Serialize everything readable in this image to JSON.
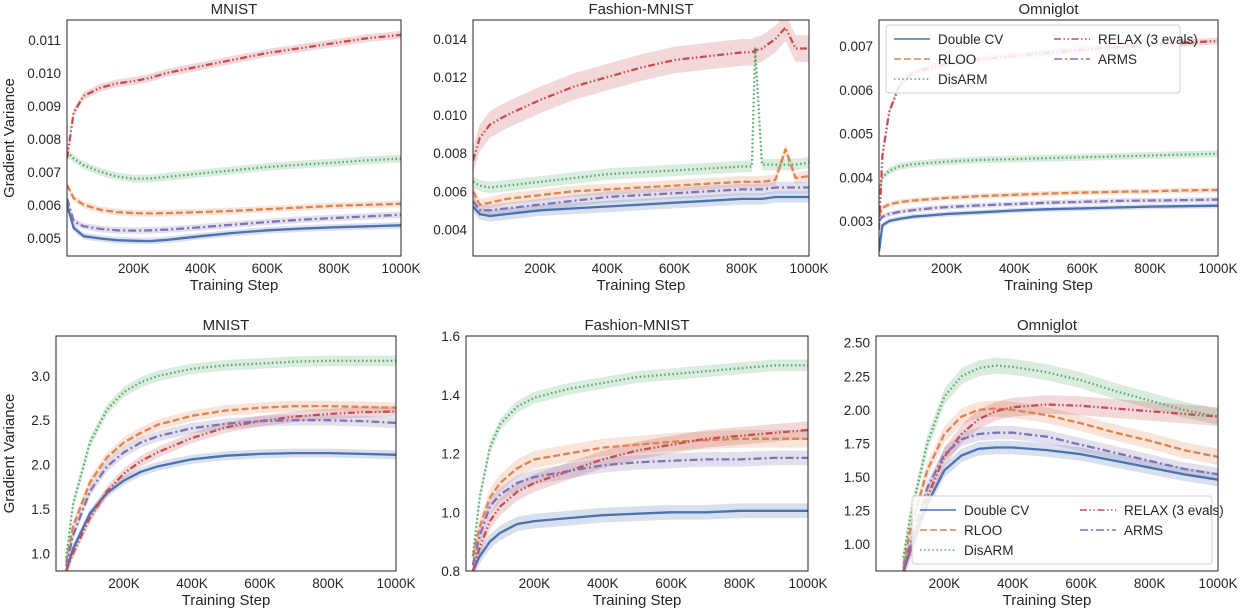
{
  "figure": {
    "xlabel": "Training Step",
    "ylabel": "Gradient Variance"
  },
  "legend_entries": [
    {
      "name": "Double CV",
      "color": "#4c72b0",
      "dash": "solid"
    },
    {
      "name": "RLOO",
      "color": "#dd8452",
      "dash": "dashed"
    },
    {
      "name": "DisARM",
      "color": "#55a868",
      "dash": "dotted"
    },
    {
      "name": "RELAX (3 evals)",
      "color": "#c44e52",
      "dash": "dashdotdot"
    },
    {
      "name": "ARMS",
      "color": "#8172b3",
      "dash": "dashdot"
    }
  ],
  "chart_data": [
    {
      "type": "line",
      "title": "MNIST",
      "xlabel": "Training Step",
      "ylabel": "Gradient Variance",
      "xlim": [
        0,
        1000000
      ],
      "ylim": [
        0.00445,
        0.0116
      ],
      "grid": false,
      "legend": "none",
      "xticks": [
        200000,
        400000,
        600000,
        800000,
        1000000
      ],
      "xtick_labels": [
        "200K",
        "400K",
        "600K",
        "800K",
        "1000K"
      ],
      "yticks": [
        0.005,
        0.006,
        0.007,
        0.008,
        0.009,
        0.01,
        0.011
      ],
      "ytick_labels": [
        "0.005",
        "0.006",
        "0.007",
        "0.008",
        "0.009",
        "0.010",
        "0.011"
      ],
      "x": [
        0,
        20000,
        50000,
        100000,
        150000,
        200000,
        250000,
        300000,
        400000,
        500000,
        600000,
        700000,
        800000,
        900000,
        1000000
      ],
      "series": [
        {
          "name": "Double CV",
          "values": [
            0.006,
            0.0053,
            0.00505,
            0.00498,
            0.00493,
            0.00491,
            0.0049,
            0.00494,
            0.00505,
            0.00515,
            0.00523,
            0.00528,
            0.00532,
            0.00535,
            0.00538
          ],
          "band": 0.0001
        },
        {
          "name": "RLOO",
          "values": [
            0.0066,
            0.0062,
            0.006,
            0.00585,
            0.00578,
            0.00575,
            0.00574,
            0.00575,
            0.00578,
            0.00582,
            0.00587,
            0.00592,
            0.00597,
            0.006,
            0.00603
          ],
          "band": 0.0001
        },
        {
          "name": "DisARM",
          "values": [
            0.0076,
            0.0074,
            0.0072,
            0.007,
            0.00686,
            0.00679,
            0.0068,
            0.00685,
            0.00695,
            0.00705,
            0.00715,
            0.00722,
            0.00728,
            0.00735,
            0.0074
          ],
          "band": 0.00012
        },
        {
          "name": "RELAX (3 evals)",
          "values": [
            0.0074,
            0.0088,
            0.0093,
            0.00955,
            0.00968,
            0.00975,
            0.00985,
            0.01,
            0.0102,
            0.0104,
            0.0106,
            0.01075,
            0.0109,
            0.01105,
            0.01115
          ],
          "band": 0.00012
        },
        {
          "name": "ARMS",
          "values": [
            0.0062,
            0.0055,
            0.00535,
            0.00527,
            0.00523,
            0.00522,
            0.00523,
            0.00525,
            0.00532,
            0.0054,
            0.00548,
            0.00555,
            0.0056,
            0.00565,
            0.0057
          ],
          "band": 0.0001
        }
      ]
    },
    {
      "type": "line",
      "title": "Fashion-MNIST",
      "xlabel": "Training Step",
      "ylabel": "",
      "xlim": [
        0,
        1000000
      ],
      "ylim": [
        0.0026,
        0.015
      ],
      "grid": false,
      "legend": "none",
      "xticks": [
        200000,
        400000,
        600000,
        800000,
        1000000
      ],
      "xtick_labels": [
        "200K",
        "400K",
        "600K",
        "800K",
        "1000K"
      ],
      "yticks": [
        0.004,
        0.006,
        0.008,
        0.01,
        0.012,
        0.014
      ],
      "ytick_labels": [
        "0.004",
        "0.006",
        "0.008",
        "0.010",
        "0.012",
        "0.014"
      ],
      "x": [
        0,
        20000,
        50000,
        100000,
        150000,
        200000,
        300000,
        400000,
        500000,
        600000,
        700000,
        800000,
        830000,
        840000,
        860000,
        900000,
        930000,
        960000,
        1000000
      ],
      "series": [
        {
          "name": "Double CV",
          "values": [
            0.0052,
            0.0048,
            0.0047,
            0.0048,
            0.0049,
            0.005,
            0.0051,
            0.0052,
            0.0053,
            0.0054,
            0.0055,
            0.0056,
            0.0056,
            0.0056,
            0.0056,
            0.0057,
            0.0057,
            0.0057,
            0.0057
          ],
          "band": 0.0003
        },
        {
          "name": "RLOO",
          "values": [
            0.006,
            0.0053,
            0.0054,
            0.0056,
            0.0057,
            0.0058,
            0.006,
            0.0061,
            0.0062,
            0.0063,
            0.0064,
            0.0065,
            0.0065,
            0.0065,
            0.0065,
            0.0066,
            0.0082,
            0.0067,
            0.0068
          ],
          "band": 0.0003
        },
        {
          "name": "DisARM",
          "values": [
            0.0065,
            0.0063,
            0.0062,
            0.0063,
            0.0064,
            0.0065,
            0.0067,
            0.0069,
            0.007,
            0.0071,
            0.0072,
            0.0073,
            0.0073,
            0.0135,
            0.0074,
            0.0074,
            0.0074,
            0.0074,
            0.0075
          ],
          "band": 0.0003
        },
        {
          "name": "RELAX (3 evals)",
          "values": [
            0.0076,
            0.0088,
            0.0095,
            0.01,
            0.0104,
            0.0108,
            0.0115,
            0.012,
            0.0125,
            0.0129,
            0.0131,
            0.0133,
            0.0133,
            0.0134,
            0.0135,
            0.014,
            0.0146,
            0.0135,
            0.0135
          ],
          "band": 0.0007
        },
        {
          "name": "ARMS",
          "values": [
            0.0055,
            0.005,
            0.005,
            0.0051,
            0.0052,
            0.0053,
            0.0055,
            0.0057,
            0.0058,
            0.0059,
            0.006,
            0.0061,
            0.0061,
            0.0061,
            0.0061,
            0.0062,
            0.0062,
            0.0062,
            0.0062
          ],
          "band": 0.0003
        }
      ]
    },
    {
      "type": "line",
      "title": "Omniglot",
      "xlabel": "Training Step",
      "ylabel": "",
      "xlim": [
        0,
        1000000
      ],
      "ylim": [
        0.0022,
        0.0076
      ],
      "grid": false,
      "legend": "top-left, 2 columns",
      "xticks": [
        200000,
        400000,
        600000,
        800000,
        1000000
      ],
      "xtick_labels": [
        "200K",
        "400K",
        "600K",
        "800K",
        "1000K"
      ],
      "yticks": [
        0.003,
        0.004,
        0.005,
        0.006,
        0.007
      ],
      "ytick_labels": [
        "0.003",
        "0.004",
        "0.005",
        "0.006",
        "0.007"
      ],
      "x": [
        0,
        10000,
        30000,
        60000,
        100000,
        150000,
        200000,
        300000,
        400000,
        500000,
        600000,
        700000,
        800000,
        900000,
        1000000
      ],
      "series": [
        {
          "name": "Double CV",
          "values": [
            0.0023,
            0.0029,
            0.003,
            0.00305,
            0.0031,
            0.00313,
            0.00316,
            0.0032,
            0.00324,
            0.00327,
            0.00329,
            0.00331,
            0.00333,
            0.00334,
            0.00335
          ],
          "band": 6e-05
        },
        {
          "name": "RLOO",
          "values": [
            0.0031,
            0.0033,
            0.00338,
            0.00343,
            0.00347,
            0.0035,
            0.00353,
            0.00357,
            0.0036,
            0.00363,
            0.00365,
            0.00367,
            0.00368,
            0.0037,
            0.00371
          ],
          "band": 6e-05
        },
        {
          "name": "DisARM",
          "values": [
            0.0037,
            0.004,
            0.00415,
            0.00425,
            0.0043,
            0.00433,
            0.00436,
            0.0044,
            0.00442,
            0.00444,
            0.00446,
            0.00448,
            0.0045,
            0.00452,
            0.00454
          ],
          "band": 8e-05
        },
        {
          "name": "RELAX (3 evals)",
          "values": [
            0.0028,
            0.0045,
            0.0055,
            0.0061,
            0.0064,
            0.0065,
            0.0066,
            0.0067,
            0.00678,
            0.00685,
            0.00692,
            0.00698,
            0.00703,
            0.00708,
            0.00712
          ],
          "band": 8e-05
        },
        {
          "name": "ARMS",
          "values": [
            0.003,
            0.0031,
            0.00316,
            0.00321,
            0.00325,
            0.00329,
            0.00332,
            0.00336,
            0.00339,
            0.00342,
            0.00344,
            0.00346,
            0.00347,
            0.00348,
            0.00349
          ],
          "band": 6e-05
        }
      ]
    },
    {
      "type": "line",
      "title": "MNIST",
      "xlabel": "Training Step",
      "ylabel": "Gradient Variance",
      "xlim": [
        0,
        1000000
      ],
      "ylim": [
        0.8,
        3.45
      ],
      "grid": false,
      "legend": "none",
      "xticks": [
        200000,
        400000,
        600000,
        800000,
        1000000
      ],
      "xtick_labels": [
        "200K",
        "400K",
        "600K",
        "800K",
        "1000K"
      ],
      "yticks": [
        1.0,
        1.5,
        2.0,
        2.5,
        3.0
      ],
      "ytick_labels": [
        "1.0",
        "1.5",
        "2.0",
        "2.5",
        "3.0"
      ],
      "x": [
        30000,
        50000,
        100000,
        150000,
        200000,
        250000,
        300000,
        400000,
        500000,
        600000,
        700000,
        800000,
        900000,
        1000000
      ],
      "series": [
        {
          "name": "Double CV",
          "values": [
            0.8,
            1.05,
            1.45,
            1.68,
            1.82,
            1.92,
            1.98,
            2.06,
            2.1,
            2.12,
            2.13,
            2.13,
            2.12,
            2.11
          ],
          "band": 0.05
        },
        {
          "name": "RLOO",
          "values": [
            0.9,
            1.3,
            1.8,
            2.08,
            2.25,
            2.36,
            2.45,
            2.55,
            2.61,
            2.64,
            2.66,
            2.66,
            2.65,
            2.64
          ],
          "band": 0.06
        },
        {
          "name": "DisARM",
          "values": [
            0.95,
            1.55,
            2.25,
            2.62,
            2.82,
            2.93,
            3.0,
            3.08,
            3.12,
            3.14,
            3.16,
            3.17,
            3.17,
            3.17
          ],
          "band": 0.06
        },
        {
          "name": "RELAX (3 evals)",
          "values": [
            0.8,
            1.0,
            1.4,
            1.7,
            1.9,
            2.04,
            2.14,
            2.3,
            2.42,
            2.49,
            2.54,
            2.57,
            2.59,
            2.6
          ],
          "band": 0.06
        },
        {
          "name": "ARMS",
          "values": [
            0.85,
            1.2,
            1.7,
            1.98,
            2.14,
            2.25,
            2.32,
            2.41,
            2.46,
            2.49,
            2.5,
            2.5,
            2.49,
            2.47
          ],
          "band": 0.06
        }
      ]
    },
    {
      "type": "line",
      "title": "Fashion-MNIST",
      "xlabel": "Training Step",
      "ylabel": "",
      "xlim": [
        0,
        1000000
      ],
      "ylim": [
        0.8,
        1.6
      ],
      "grid": false,
      "legend": "none",
      "xticks": [
        200000,
        400000,
        600000,
        800000,
        1000000
      ],
      "xtick_labels": [
        "200K",
        "400K",
        "600K",
        "800K",
        "1000K"
      ],
      "yticks": [
        0.8,
        1.0,
        1.2,
        1.4,
        1.6
      ],
      "ytick_labels": [
        "0.8",
        "1.0",
        "1.2",
        "1.4",
        "1.6"
      ],
      "x": [
        20000,
        40000,
        70000,
        100000,
        150000,
        200000,
        300000,
        400000,
        500000,
        600000,
        700000,
        800000,
        900000,
        1000000
      ],
      "series": [
        {
          "name": "Double CV",
          "values": [
            0.8,
            0.85,
            0.9,
            0.93,
            0.96,
            0.97,
            0.98,
            0.99,
            0.995,
            1.0,
            1.0,
            1.005,
            1.005,
            1.005
          ],
          "band": 0.025
        },
        {
          "name": "RLOO",
          "values": [
            0.85,
            0.95,
            1.05,
            1.1,
            1.15,
            1.18,
            1.2,
            1.22,
            1.23,
            1.24,
            1.245,
            1.25,
            1.25,
            1.25
          ],
          "band": 0.03
        },
        {
          "name": "DisARM",
          "values": [
            0.85,
            1.05,
            1.22,
            1.3,
            1.36,
            1.39,
            1.42,
            1.44,
            1.46,
            1.47,
            1.48,
            1.49,
            1.5,
            1.5
          ],
          "band": 0.02
        },
        {
          "name": "RELAX (3 evals)",
          "values": [
            0.8,
            0.88,
            0.97,
            1.02,
            1.07,
            1.1,
            1.14,
            1.18,
            1.21,
            1.23,
            1.25,
            1.26,
            1.27,
            1.28
          ],
          "band": 0.03
        },
        {
          "name": "ARMS",
          "values": [
            0.82,
            0.92,
            1.02,
            1.06,
            1.1,
            1.12,
            1.14,
            1.16,
            1.17,
            1.175,
            1.18,
            1.18,
            1.185,
            1.185
          ],
          "band": 0.025
        }
      ]
    },
    {
      "type": "line",
      "title": "Omniglot",
      "xlabel": "Training Step",
      "ylabel": "",
      "xlim": [
        0,
        1000000
      ],
      "ylim": [
        0.8,
        2.55
      ],
      "grid": false,
      "legend": "bottom-right, 2 columns",
      "xticks": [
        200000,
        400000,
        600000,
        800000,
        1000000
      ],
      "xtick_labels": [
        "200K",
        "400K",
        "600K",
        "800K",
        "1000K"
      ],
      "yticks": [
        1.0,
        1.25,
        1.5,
        1.75,
        2.0,
        2.25,
        2.5
      ],
      "ytick_labels": [
        "1.00",
        "1.25",
        "1.50",
        "1.75",
        "2.00",
        "2.25",
        "2.50"
      ],
      "x": [
        80000,
        100000,
        150000,
        200000,
        250000,
        300000,
        350000,
        400000,
        500000,
        600000,
        700000,
        800000,
        900000,
        1000000
      ],
      "series": [
        {
          "name": "Double CV",
          "values": [
            0.8,
            0.95,
            1.3,
            1.55,
            1.66,
            1.71,
            1.72,
            1.72,
            1.7,
            1.67,
            1.62,
            1.57,
            1.52,
            1.48
          ],
          "band": 0.05
        },
        {
          "name": "RLOO",
          "values": [
            0.85,
            1.1,
            1.55,
            1.82,
            1.95,
            2.0,
            2.01,
            2.0,
            1.96,
            1.9,
            1.83,
            1.77,
            1.7,
            1.65
          ],
          "band": 0.06
        },
        {
          "name": "DisARM",
          "values": [
            0.9,
            1.2,
            1.75,
            2.1,
            2.25,
            2.31,
            2.33,
            2.32,
            2.28,
            2.22,
            2.14,
            2.07,
            2.0,
            1.95
          ],
          "band": 0.06
        },
        {
          "name": "RELAX (3 evals)",
          "values": [
            0.8,
            0.95,
            1.35,
            1.65,
            1.82,
            1.93,
            1.99,
            2.02,
            2.04,
            2.03,
            2.01,
            1.99,
            1.97,
            1.95
          ],
          "band": 0.07
        },
        {
          "name": "ARMS",
          "values": [
            0.82,
            1.0,
            1.42,
            1.67,
            1.78,
            1.82,
            1.83,
            1.83,
            1.8,
            1.74,
            1.68,
            1.62,
            1.56,
            1.52
          ],
          "band": 0.05
        }
      ]
    }
  ]
}
